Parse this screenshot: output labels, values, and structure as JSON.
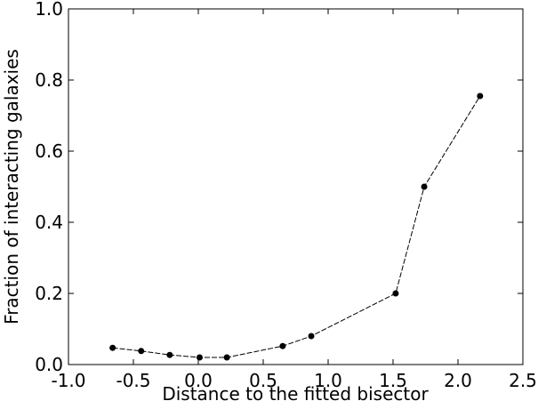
{
  "chart_data": {
    "type": "line",
    "xlabel": "Distance to the fitted bisector",
    "ylabel": "Fraction of interacting galaxies",
    "x": [
      -0.66,
      -0.44,
      -0.22,
      0.01,
      0.22,
      0.65,
      0.87,
      1.52,
      1.74,
      2.17
    ],
    "values": [
      0.047,
      0.038,
      0.027,
      0.02,
      0.02,
      0.052,
      0.08,
      0.2,
      0.5,
      0.755
    ],
    "color": "#000000",
    "xlim": [
      -1.0,
      2.5
    ],
    "xticks": [
      {
        "value": -1.0,
        "label": "-1.0"
      },
      {
        "value": -0.5,
        "label": "-0.5"
      },
      {
        "value": 0,
        "label": "0.0"
      },
      {
        "value": 0.5,
        "label": "0.5"
      },
      {
        "value": 1.0,
        "label": "1.0"
      },
      {
        "value": 1.5,
        "label": "1.5"
      },
      {
        "value": 2.0,
        "label": "2.0"
      },
      {
        "value": 2.5,
        "label": "2.5"
      }
    ],
    "ylim": [
      0,
      1.0
    ],
    "yticks": [
      {
        "value": 0,
        "label": "0.0"
      },
      {
        "value": 0.2,
        "label": "0.2"
      },
      {
        "value": 0.4,
        "label": "0.4"
      },
      {
        "value": 0.6,
        "label": "0.6"
      },
      {
        "value": 0.8,
        "label": "0.8"
      },
      {
        "value": 1.0,
        "label": "1.0"
      }
    ],
    "grid": false
  }
}
